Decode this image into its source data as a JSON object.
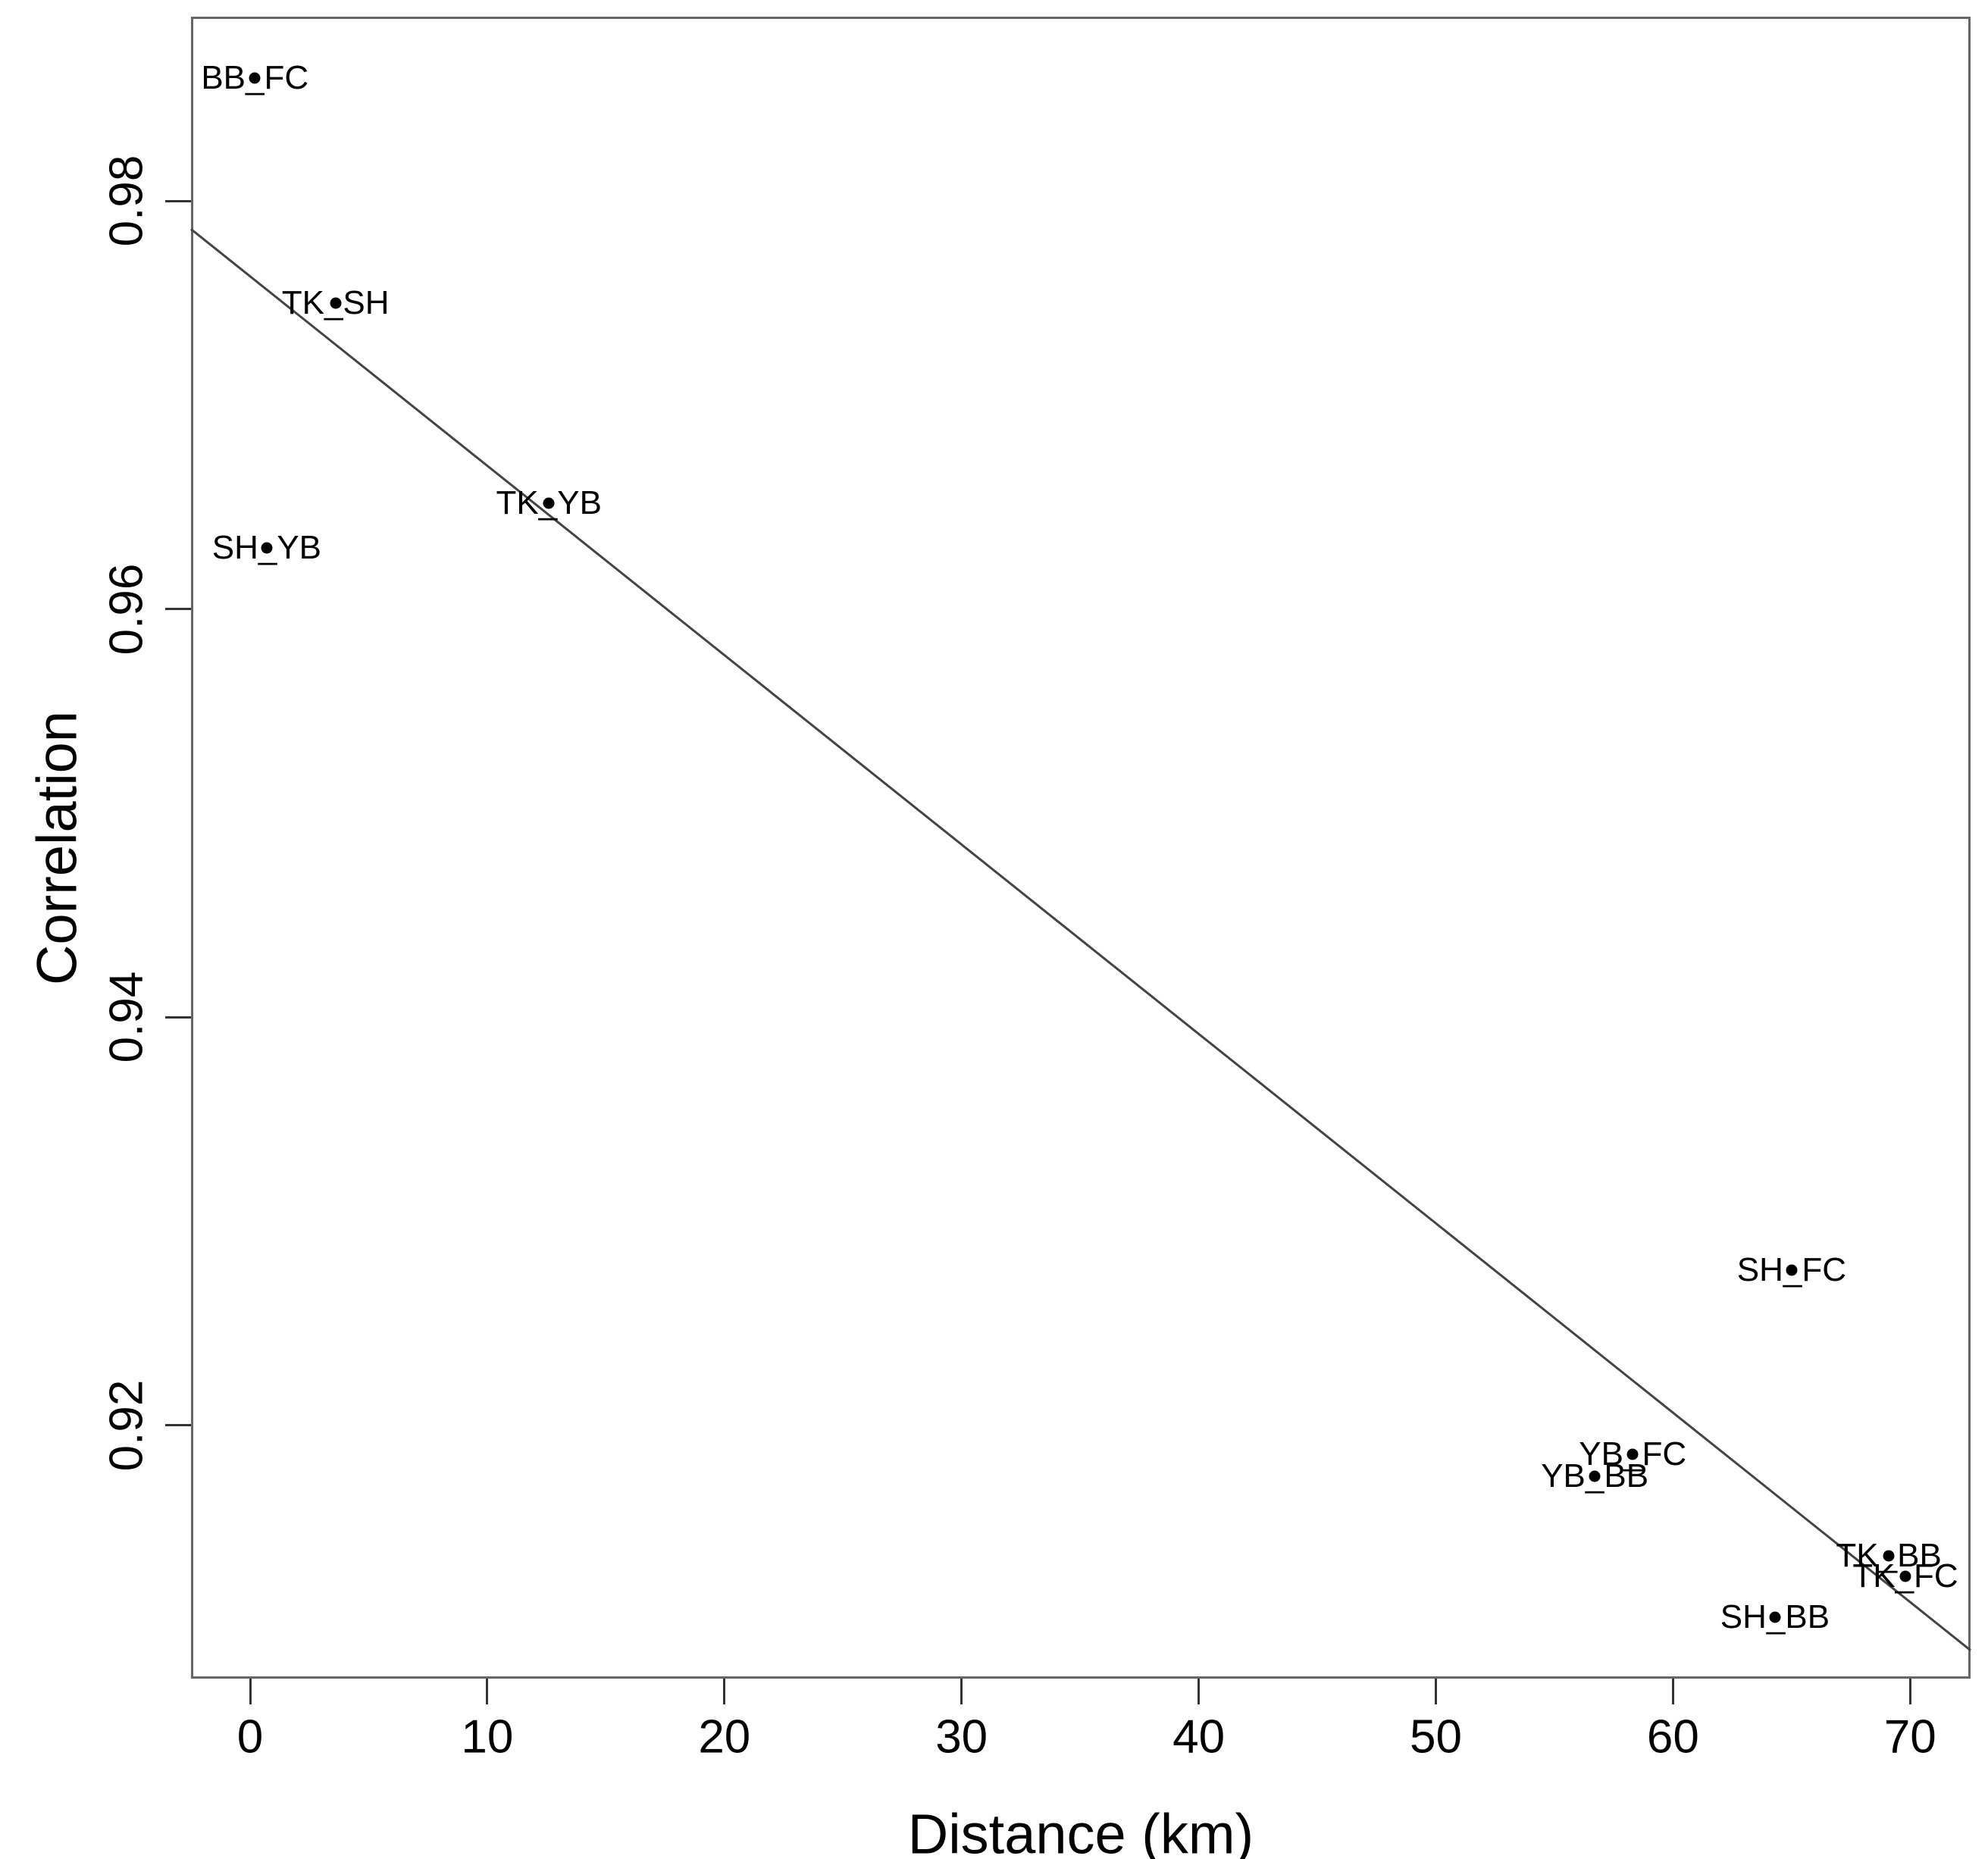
{
  "chart_data": {
    "type": "scatter",
    "title": "",
    "xlabel": "Distance (km)",
    "ylabel": "Correlation",
    "xlim": [
      -2.5,
      72.6
    ],
    "ylim": [
      0.9076,
      0.989
    ],
    "grid": false,
    "legend": "none",
    "x_ticks": [
      0,
      10,
      20,
      30,
      40,
      50,
      60,
      70
    ],
    "x_tick_labels": [
      "0",
      "10",
      "20",
      "30",
      "40",
      "50",
      "60",
      "70"
    ],
    "y_ticks": [
      0.92,
      0.94,
      0.96,
      0.98
    ],
    "y_tick_labels": [
      "0.92",
      "0.94",
      "0.96",
      "0.98"
    ],
    "points": [
      {
        "label": "BB_FC",
        "x": 0.2,
        "y": 0.986
      },
      {
        "label": "TK_SH",
        "x": 3.6,
        "y": 0.975
      },
      {
        "label": "SH_YB",
        "x": 0.7,
        "y": 0.963
      },
      {
        "label": "TK_YB",
        "x": 12.6,
        "y": 0.9652
      },
      {
        "label": "SH_FC",
        "x": 65.0,
        "y": 0.9276
      },
      {
        "label": "YB_FC",
        "x": 58.3,
        "y": 0.9186
      },
      {
        "label": "YB_BB",
        "x": 56.7,
        "y": 0.9175
      },
      {
        "label": "TK_BB",
        "x": 69.1,
        "y": 0.9136
      },
      {
        "label": "TK_FC",
        "x": 69.8,
        "y": 0.9126
      },
      {
        "label": "SH_BB",
        "x": 64.3,
        "y": 0.9106
      }
    ],
    "trendline": {
      "type": "linear",
      "slope": -0.000928,
      "intercept": 0.9763
    },
    "colors": {
      "point": "#000000",
      "trendline": "#444444",
      "axis": "#666666",
      "text": "#000000",
      "background": "#ffffff"
    }
  }
}
